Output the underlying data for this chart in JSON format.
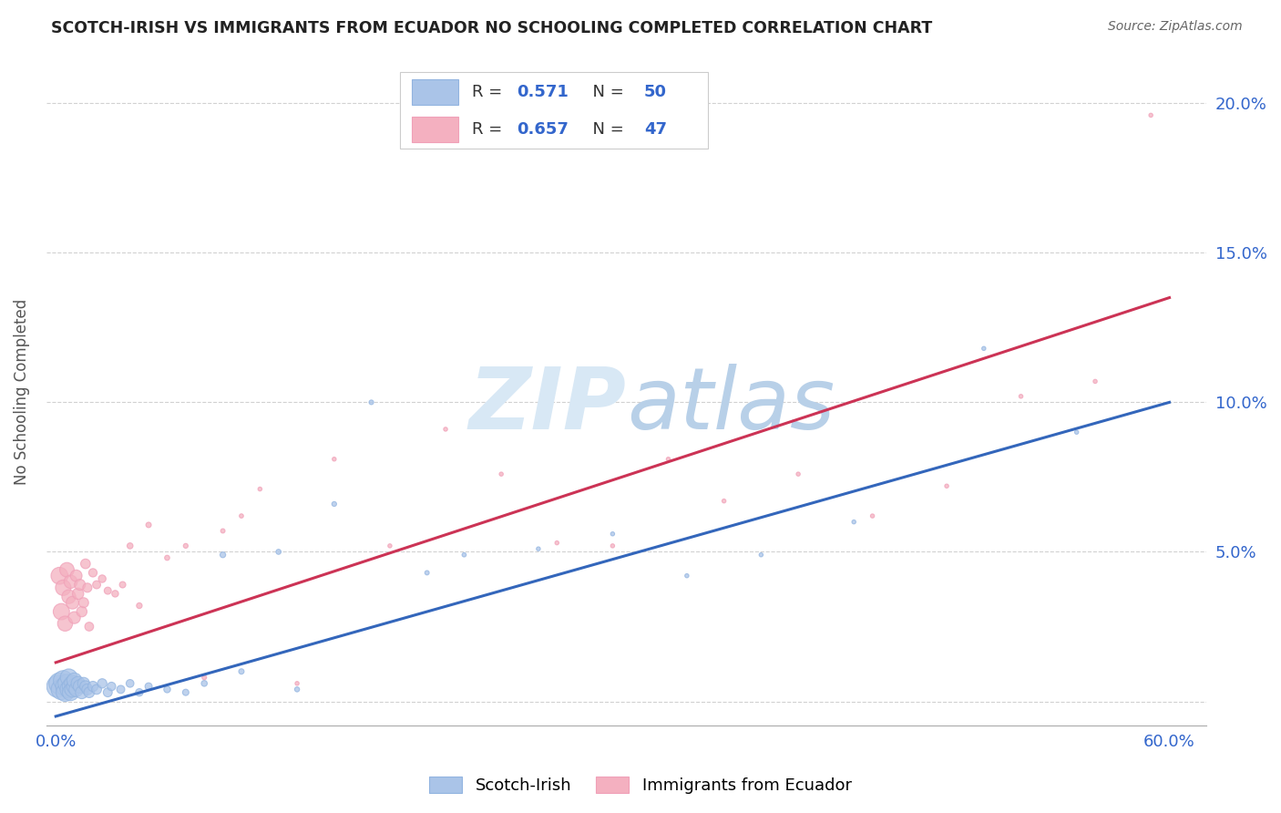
{
  "title": "SCOTCH-IRISH VS IMMIGRANTS FROM ECUADOR NO SCHOOLING COMPLETED CORRELATION CHART",
  "source": "Source: ZipAtlas.com",
  "ylabel": "No Schooling Completed",
  "legend_label1": "Scotch-Irish",
  "legend_label2": "Immigrants from Ecuador",
  "R1": "0.571",
  "N1": "50",
  "R2": "0.657",
  "N2": "47",
  "blue_color": "#92b4e0",
  "blue_face_color": "#aac4e8",
  "pink_color": "#f0a0b8",
  "pink_face_color": "#f4b0c0",
  "blue_line_color": "#3366bb",
  "pink_line_color": "#cc3355",
  "watermark_color": "#d8e8f5",
  "blue_line_x": [
    0.0,
    0.6
  ],
  "blue_line_y": [
    -0.005,
    0.1
  ],
  "pink_line_x": [
    0.0,
    0.6
  ],
  "pink_line_y": [
    0.013,
    0.135
  ],
  "blue_scatter_x": [
    0.001,
    0.002,
    0.003,
    0.004,
    0.005,
    0.005,
    0.006,
    0.007,
    0.007,
    0.008,
    0.008,
    0.009,
    0.009,
    0.01,
    0.01,
    0.011,
    0.012,
    0.013,
    0.014,
    0.015,
    0.016,
    0.017,
    0.018,
    0.02,
    0.022,
    0.025,
    0.028,
    0.03,
    0.035,
    0.04,
    0.045,
    0.05,
    0.06,
    0.07,
    0.08,
    0.09,
    0.1,
    0.12,
    0.13,
    0.15,
    0.17,
    0.2,
    0.22,
    0.26,
    0.3,
    0.34,
    0.38,
    0.43,
    0.5,
    0.55
  ],
  "blue_scatter_y": [
    0.005,
    0.006,
    0.004,
    0.007,
    0.005,
    0.003,
    0.006,
    0.004,
    0.008,
    0.005,
    0.003,
    0.006,
    0.004,
    0.005,
    0.007,
    0.004,
    0.006,
    0.005,
    0.003,
    0.006,
    0.005,
    0.004,
    0.003,
    0.005,
    0.004,
    0.006,
    0.003,
    0.005,
    0.004,
    0.006,
    0.003,
    0.005,
    0.004,
    0.003,
    0.006,
    0.049,
    0.01,
    0.05,
    0.004,
    0.066,
    0.1,
    0.043,
    0.049,
    0.051,
    0.056,
    0.042,
    0.049,
    0.06,
    0.118,
    0.09
  ],
  "blue_marker_sizes": [
    300,
    280,
    260,
    240,
    220,
    200,
    200,
    190,
    180,
    175,
    170,
    160,
    150,
    145,
    140,
    130,
    120,
    110,
    100,
    90,
    80,
    75,
    70,
    65,
    60,
    55,
    50,
    45,
    40,
    38,
    35,
    32,
    28,
    25,
    22,
    20,
    18,
    16,
    15,
    14,
    13,
    12,
    11,
    10,
    10,
    10,
    10,
    10,
    10,
    10
  ],
  "pink_scatter_x": [
    0.002,
    0.003,
    0.004,
    0.005,
    0.006,
    0.007,
    0.008,
    0.009,
    0.01,
    0.011,
    0.012,
    0.013,
    0.014,
    0.015,
    0.016,
    0.017,
    0.018,
    0.02,
    0.022,
    0.025,
    0.028,
    0.032,
    0.036,
    0.04,
    0.045,
    0.05,
    0.06,
    0.07,
    0.08,
    0.09,
    0.1,
    0.11,
    0.13,
    0.15,
    0.18,
    0.21,
    0.24,
    0.27,
    0.3,
    0.33,
    0.36,
    0.4,
    0.44,
    0.48,
    0.52,
    0.56,
    0.59
  ],
  "pink_scatter_y": [
    0.042,
    0.03,
    0.038,
    0.026,
    0.044,
    0.035,
    0.04,
    0.033,
    0.028,
    0.042,
    0.036,
    0.039,
    0.03,
    0.033,
    0.046,
    0.038,
    0.025,
    0.043,
    0.039,
    0.041,
    0.037,
    0.036,
    0.039,
    0.052,
    0.032,
    0.059,
    0.048,
    0.052,
    0.008,
    0.057,
    0.062,
    0.071,
    0.006,
    0.081,
    0.052,
    0.091,
    0.076,
    0.053,
    0.052,
    0.081,
    0.067,
    0.076,
    0.062,
    0.072,
    0.102,
    0.107,
    0.196
  ],
  "pink_marker_sizes": [
    180,
    165,
    150,
    140,
    130,
    120,
    110,
    100,
    90,
    85,
    80,
    75,
    68,
    62,
    58,
    52,
    48,
    44,
    40,
    36,
    32,
    28,
    25,
    22,
    20,
    18,
    16,
    14,
    13,
    12,
    11,
    10,
    10,
    10,
    10,
    10,
    10,
    10,
    10,
    10,
    10,
    10,
    10,
    10,
    10,
    10,
    10
  ],
  "xlim": [
    -0.005,
    0.62
  ],
  "ylim": [
    -0.008,
    0.215
  ],
  "x_ticks": [
    0.0,
    0.1,
    0.2,
    0.3,
    0.4,
    0.5,
    0.6
  ],
  "x_tick_labels": [
    "0.0%",
    "",
    "",
    "",
    "",
    "",
    "60.0%"
  ],
  "y_ticks": [
    0.0,
    0.05,
    0.1,
    0.15,
    0.2
  ],
  "y_tick_labels_right": [
    "",
    "5.0%",
    "10.0%",
    "15.0%",
    "20.0%"
  ]
}
